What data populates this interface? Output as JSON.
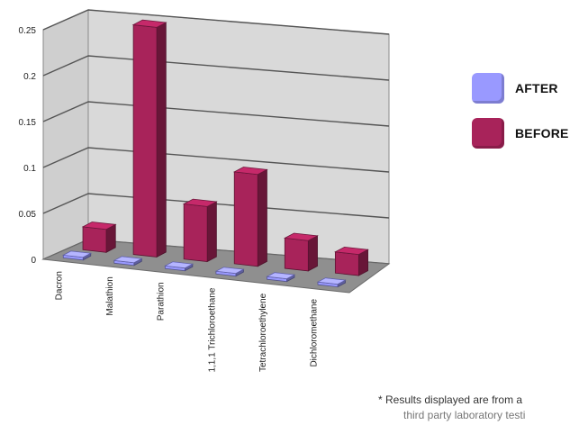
{
  "chart_data": {
    "type": "bar",
    "categories": [
      "Dacron",
      "Malathion",
      "Parathion",
      "1,1,1 Trichloroethane",
      "Tetrachloroethylene",
      "Dichloromethane"
    ],
    "series": [
      {
        "name": "AFTER",
        "color": "#9999ff",
        "values": [
          0,
          0,
          0,
          0,
          0,
          0
        ]
      },
      {
        "name": "BEFORE",
        "color": "#a8235a",
        "values": [
          0.025,
          0.25,
          0.06,
          0.1,
          0.033,
          0.023
        ]
      }
    ],
    "y_ticks": [
      "0",
      "0.05",
      "0.1",
      "0.15",
      "0.2",
      "0.25"
    ],
    "ylim": [
      0,
      0.25
    ],
    "legend_position": "right",
    "grid": true
  },
  "legend": {
    "after_label": "AFTER",
    "before_label": "BEFORE"
  },
  "footnote": {
    "line1": "* Results displayed are from a",
    "line2": "third party laboratory testi"
  }
}
